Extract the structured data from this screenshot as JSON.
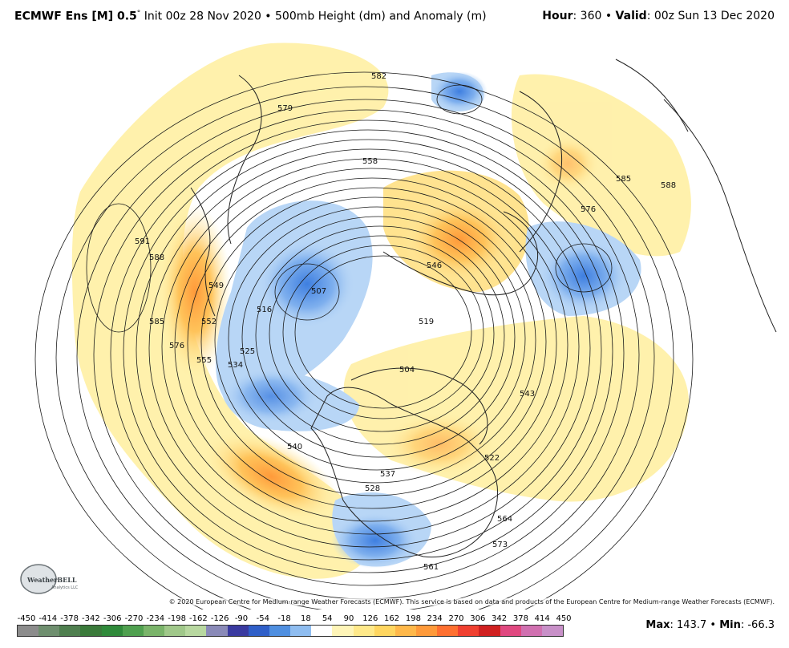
{
  "header": {
    "model": "ECMWF Ens [M] 0.5",
    "degree": "°",
    "description": " Init 00z 28 Nov 2020 • 500mb Height (dm) and Anomaly (m)",
    "hour_label": "Hour",
    "hour_value": ": 360 • ",
    "valid_label": "Valid",
    "valid_value": ": 00z Sun 13 Dec 2020"
  },
  "credit": "© 2020 European Centre for Medium-range Weather Forecasts (ECMWF). This service is based on data and products of the European Centre for Medium-range Weather Forecasts (ECMWF).",
  "logo": {
    "name": "WeatherBELL",
    "sub": "Analytics LLC"
  },
  "contour_labels": [
    "582",
    "579",
    "558",
    "591",
    "588",
    "585",
    "576",
    "555",
    "549",
    "552",
    "534",
    "525",
    "516",
    "507",
    "540",
    "546",
    "537",
    "519",
    "543",
    "564",
    "573",
    "585",
    "588",
    "576",
    "561",
    "504",
    "528",
    "522"
  ],
  "colorbar": {
    "ticks": [
      "-450",
      "-414",
      "-378",
      "-342",
      "-306",
      "-270",
      "-234",
      "-198",
      "-162",
      "-126",
      "-90",
      "-54",
      "-18",
      "18",
      "54",
      "90",
      "126",
      "162",
      "198",
      "234",
      "270",
      "306",
      "342",
      "378",
      "414",
      "450"
    ],
    "colors": [
      "#8c8c8c",
      "#6f8f6f",
      "#4f7f4f",
      "#3a7a3a",
      "#2f8a3a",
      "#4fa04f",
      "#7ab46a",
      "#a0c88a",
      "#b8d8a0",
      "#8a8ab8",
      "#3a3aa0",
      "#2f5fc8",
      "#4f8fe0",
      "#8fbdf0",
      "#ffffff",
      "#fff5b8",
      "#ffe98a",
      "#ffd660",
      "#ffb84a",
      "#ff9a3a",
      "#ff7030",
      "#f04030",
      "#d02020",
      "#e04880",
      "#d070b0",
      "#c890c8"
    ]
  },
  "stats": {
    "max_label": "Max",
    "max_value": ": 143.7 • ",
    "min_label": "Min",
    "min_value": ": -66.3"
  }
}
